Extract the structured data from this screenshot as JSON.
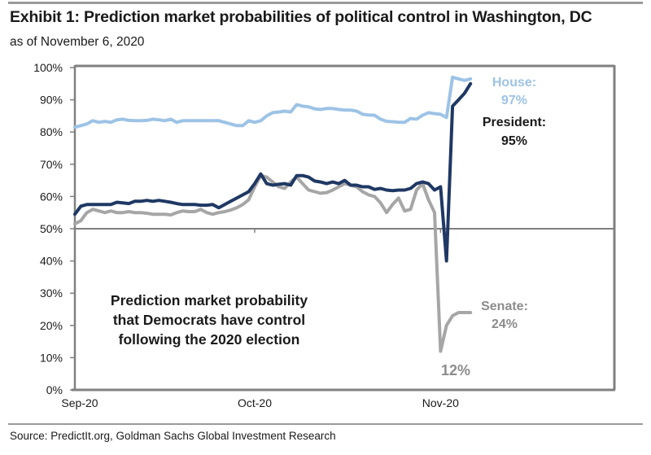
{
  "header": {
    "title": "Exhibit 1: Prediction market probabilities of political control in Washington, DC",
    "subtitle": "as of November 6, 2020"
  },
  "footer": {
    "source": "Source: PredictIt.org, Goldman Sachs Global Investment Research"
  },
  "colors": {
    "house": "#9DC3E6",
    "president": "#1F3864",
    "senate": "#A6A6A6",
    "axis": "#808080",
    "annot_house": "#9DC3E6",
    "annot_president": "#1a1a1a",
    "annot_senate": "#8c8c8c"
  },
  "chart_data": {
    "type": "line",
    "title": "Exhibit 1: Prediction market probabilities of political control in Washington, DC",
    "subtitle": "as of November 6, 2020",
    "xlabel": "",
    "ylabel": "",
    "x_unit": "days since 2020-09-01",
    "xlim": [
      0,
      90
    ],
    "ylim": [
      0,
      100
    ],
    "y_ticks": [
      0,
      10,
      20,
      30,
      40,
      50,
      60,
      70,
      80,
      90,
      100
    ],
    "y_tick_labels": [
      "0%",
      "10%",
      "20%",
      "30%",
      "40%",
      "50%",
      "60%",
      "70%",
      "80%",
      "90%",
      "100%"
    ],
    "x_ticks": [
      0,
      30,
      61
    ],
    "x_tick_labels": [
      "Sep-20",
      "Oct-20",
      "Nov-20"
    ],
    "reference_line": 50,
    "grid": false,
    "legend": "none (direct labels)",
    "x": [
      0,
      1,
      2,
      3,
      4,
      5,
      6,
      7,
      8,
      9,
      10,
      11,
      12,
      13,
      14,
      15,
      16,
      17,
      18,
      19,
      20,
      21,
      22,
      23,
      24,
      25,
      26,
      27,
      28,
      29,
      30,
      31,
      32,
      33,
      34,
      35,
      36,
      37,
      38,
      39,
      40,
      41,
      42,
      43,
      44,
      45,
      46,
      47,
      48,
      49,
      50,
      51,
      52,
      53,
      54,
      55,
      56,
      57,
      58,
      59,
      60,
      61,
      62,
      63,
      64,
      65,
      66
    ],
    "series": [
      {
        "name": "House",
        "values": [
          81.5,
          82,
          82.5,
          83.5,
          83,
          83.3,
          83,
          83.8,
          84,
          83.6,
          83.5,
          83.5,
          83.6,
          84,
          83.8,
          83.5,
          84,
          83,
          83.5,
          83.5,
          83.5,
          83.5,
          83.5,
          83.5,
          83.5,
          83,
          82.5,
          82,
          82,
          83.5,
          83,
          83.5,
          85,
          86,
          86.2,
          86.5,
          86.2,
          88.5,
          88,
          87.8,
          87.2,
          87,
          87.3,
          87.3,
          87,
          86.8,
          86.8,
          86.5,
          85.5,
          85.3,
          85.2,
          84,
          83.3,
          83.2,
          83,
          83,
          84.2,
          84,
          85.2,
          86,
          85.7,
          85.5,
          84.5,
          97,
          96.5,
          96,
          96.5
        ]
      },
      {
        "name": "President",
        "values": [
          54.5,
          57,
          57.5,
          57.5,
          57.5,
          57.5,
          57.5,
          58.2,
          58,
          57.8,
          58.5,
          58.5,
          58.8,
          58.5,
          58.8,
          58.5,
          58.2,
          57.8,
          57.5,
          57.5,
          57.5,
          57.3,
          57.3,
          57.5,
          56.5,
          57.5,
          58.5,
          59.5,
          60.5,
          61.5,
          64,
          67,
          64,
          63.5,
          63.8,
          64,
          63.5,
          66.5,
          66.5,
          66,
          64.8,
          64.5,
          64,
          64.5,
          64,
          65,
          63.5,
          63.5,
          63,
          63,
          62.2,
          62.5,
          62,
          61.8,
          62,
          62,
          62.5,
          64,
          64.5,
          64,
          62,
          63,
          40,
          88,
          90,
          92,
          95
        ]
      },
      {
        "name": "Senate",
        "values": [
          51.5,
          52.5,
          55,
          56,
          55.5,
          55,
          55.5,
          55,
          55,
          55.3,
          55,
          55,
          54.8,
          54.5,
          54.5,
          54.5,
          54.3,
          55,
          55.5,
          55.3,
          55.3,
          56,
          55,
          54.5,
          55,
          55.3,
          55.8,
          56.5,
          57.5,
          59,
          63,
          66.5,
          66,
          64.5,
          63,
          62.5,
          64.5,
          66,
          64,
          62,
          61.5,
          61,
          61.2,
          62,
          63,
          64,
          63.5,
          63,
          61.5,
          60.5,
          60,
          58,
          55,
          57.5,
          59.5,
          55.5,
          56,
          62,
          64,
          59,
          55,
          12,
          20,
          23,
          24,
          24,
          24
        ]
      }
    ],
    "annotations": [
      {
        "series": "House",
        "label": "House:",
        "value_label": "97%"
      },
      {
        "series": "President",
        "label": "President:",
        "value_label": "95%"
      },
      {
        "series": "Senate",
        "label": "Senate:",
        "value_label": "24%"
      },
      {
        "series": "Senate",
        "label": "12%",
        "value_label": ""
      },
      {
        "series": "none",
        "label": "Prediction market probability that Democrats have control following the 2020 election",
        "lines": [
          "Prediction market probability",
          "that Democrats have control",
          "following the 2020 election"
        ]
      }
    ]
  },
  "labels": {
    "house": "House:",
    "house_value": "97%",
    "president": "President:",
    "president_value": "95%",
    "senate": "Senate:",
    "senate_value": "24%",
    "senate_min": "12%",
    "center_line1": "Prediction market probability",
    "center_line2": "that Democrats have control",
    "center_line3": "following the 2020 election"
  }
}
